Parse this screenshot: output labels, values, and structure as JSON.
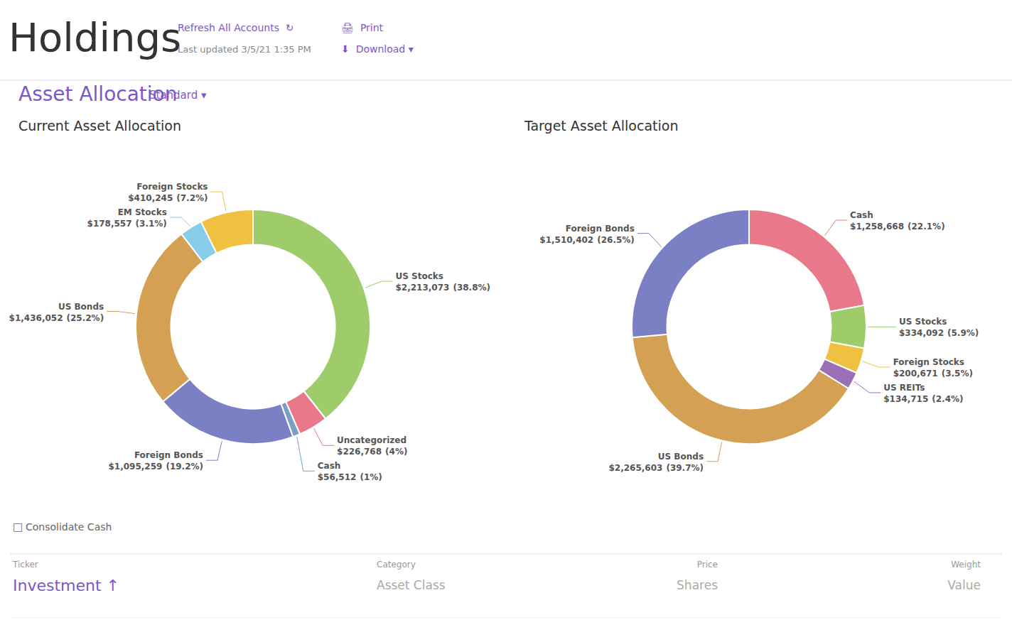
{
  "page": {
    "title": "Holdings",
    "texts": [
      "Refresh All Accounts  ↻",
      "Last updated 3/5/21 1:35 PM",
      "🖨  Print",
      "⬇  Download ▾",
      "Asset Allocation",
      "Standard ▾",
      "□",
      "Consolidate Cash",
      "Ticker",
      "Investment ↑",
      "Category",
      "Asset Class",
      "Price",
      "Shares",
      "Weight",
      "Value"
    ]
  },
  "chart_data": [
    {
      "type": "pie",
      "title": "Current Asset Allocation",
      "categories": [
        "US Stocks",
        "Uncategorized",
        "Cash",
        "Foreign Bonds",
        "US Bonds",
        "EM Stocks",
        "Foreign Stocks"
      ],
      "values": [
        38.8,
        4.0,
        1.0,
        19.2,
        25.2,
        3.1,
        7.2
      ],
      "value_labels": [
        "(38.8%)",
        "(4%)",
        "(1%)",
        "(19.2%)",
        "(25.2%)",
        "(3.1%)",
        "(7.2%)"
      ],
      "amounts": [
        "$2,213,073",
        "$226,768",
        "$56,512",
        "$1,095,259",
        "$1,436,052",
        "$178,557",
        "$410,245"
      ],
      "colors": [
        "#9fcc6b",
        "#e8788a",
        "#7b9fc4",
        "#7b7fc4",
        "#d4a054",
        "#87cce8",
        "#f0c040"
      ]
    },
    {
      "type": "pie",
      "title": "Target Asset Allocation",
      "categories": [
        "Cash",
        "US Stocks",
        "Foreign Stocks",
        "US REITs",
        "US Bonds",
        "Foreign Bonds"
      ],
      "values": [
        22.1,
        5.9,
        3.5,
        2.4,
        39.7,
        26.5
      ],
      "value_labels": [
        "(22.1%)",
        "(5.9%)",
        "(3.5%)",
        "(2.4%)",
        "(39.7%)",
        "(26.5%)"
      ],
      "amounts": [
        "$1,258,668",
        "$334,092",
        "$200,671",
        "$134,715",
        "$2,265,603",
        "$1,510,402"
      ],
      "colors": [
        "#e8788a",
        "#9fcc6b",
        "#f0c040",
        "#9b6fb5",
        "#d4a054",
        "#7b7fc4"
      ]
    }
  ]
}
